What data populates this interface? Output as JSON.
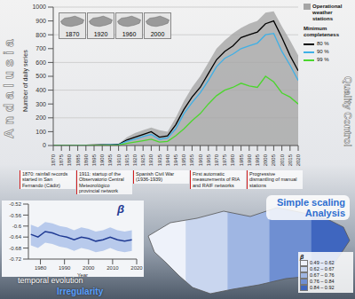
{
  "title_left": "Andalusia",
  "title_right": "Quality Control",
  "chart_data": [
    {
      "type": "line",
      "y_label": "Number of daily series",
      "legend_title": "Minimum completeness",
      "legend": "top right",
      "grid": true,
      "x": [
        1870,
        1875,
        1880,
        1885,
        1890,
        1895,
        1900,
        1905,
        1910,
        1915,
        1920,
        1925,
        1930,
        1935,
        1940,
        1945,
        1950,
        1955,
        1960,
        1965,
        1970,
        1975,
        1980,
        1985,
        1990,
        1995,
        2000,
        2005,
        2010,
        2015,
        2020
      ],
      "xlim": [
        1870,
        2020
      ],
      "xticks": [
        1870,
        1875,
        1880,
        1885,
        1890,
        1895,
        1900,
        1905,
        1910,
        1915,
        1920,
        1925,
        1930,
        1935,
        1940,
        1945,
        1950,
        1955,
        1960,
        1965,
        1970,
        1975,
        1980,
        1985,
        1990,
        1995,
        2000,
        2005,
        2010,
        2015,
        2020
      ],
      "ylim": [
        0,
        1000
      ],
      "yticks": [
        0,
        100,
        200,
        300,
        400,
        500,
        600,
        700,
        800,
        900,
        1000
      ],
      "series": [
        {
          "name": "Operational weather stations",
          "type": "area",
          "color": "#a6a6a6",
          "values": [
            1,
            2,
            3,
            3,
            4,
            5,
            6,
            7,
            10,
            60,
            90,
            110,
            130,
            110,
            100,
            200,
            320,
            420,
            500,
            600,
            700,
            760,
            810,
            850,
            880,
            900,
            960,
            970,
            860,
            760,
            650
          ]
        },
        {
          "name": "80 %",
          "type": "line",
          "color": "#000000",
          "values": [
            1,
            1,
            2,
            2,
            3,
            4,
            5,
            6,
            8,
            40,
            60,
            80,
            100,
            60,
            70,
            150,
            260,
            350,
            420,
            520,
            620,
            680,
            720,
            780,
            800,
            820,
            880,
            900,
            780,
            650,
            540
          ]
        },
        {
          "name": "90 %",
          "type": "line",
          "color": "#3fb0e6",
          "values": [
            1,
            1,
            1,
            2,
            2,
            3,
            4,
            5,
            6,
            30,
            45,
            65,
            80,
            45,
            55,
            120,
            230,
            310,
            380,
            470,
            570,
            630,
            660,
            700,
            720,
            740,
            800,
            810,
            680,
            580,
            470
          ]
        },
        {
          "name": "99 %",
          "type": "line",
          "color": "#4cd62e",
          "values": [
            0,
            0,
            1,
            1,
            1,
            2,
            2,
            3,
            4,
            15,
            25,
            35,
            45,
            25,
            30,
            70,
            120,
            180,
            230,
            300,
            360,
            400,
            420,
            450,
            430,
            420,
            500,
            460,
            380,
            350,
            300
          ]
        }
      ],
      "insets": [
        1870,
        1920,
        1960,
        2000
      ],
      "annotations": [
        "1870: rainfall records started in San Fernando (Cádiz)",
        "1911: startup of the Observatorio Central Meteorológico provincial network",
        "Spanish Civil War (1936-1939)",
        "First automatic measurements of RIA and RAIF networks",
        "Progressive dismantling of manual stations"
      ]
    },
    {
      "type": "line",
      "title": "β",
      "x_label": "Year",
      "grid": false,
      "x": [
        1976,
        1979,
        1982,
        1985,
        1988,
        1991,
        1994,
        1997,
        2000,
        2003,
        2006,
        2009,
        2012,
        2015,
        2018
      ],
      "xlim": [
        1975,
        2020
      ],
      "xticks": [
        1980,
        1990,
        2000,
        2010,
        2020
      ],
      "ylim": [
        -0.72,
        -0.52
      ],
      "yticks": [
        -0.72,
        -0.68,
        -0.64,
        -0.6,
        -0.56,
        -0.52
      ],
      "series": [
        {
          "name": "β",
          "color": "#1f3a93",
          "values": [
            -0.63,
            -0.64,
            -0.62,
            -0.625,
            -0.635,
            -0.64,
            -0.65,
            -0.64,
            -0.645,
            -0.655,
            -0.65,
            -0.64,
            -0.65,
            -0.655,
            -0.65
          ]
        }
      ],
      "band": {
        "color": "#a9bfe8",
        "lower": [
          -0.67,
          -0.68,
          -0.66,
          -0.665,
          -0.675,
          -0.68,
          -0.69,
          -0.68,
          -0.685,
          -0.695,
          -0.69,
          -0.68,
          -0.69,
          -0.695,
          -0.69
        ],
        "upper": [
          -0.595,
          -0.605,
          -0.585,
          -0.59,
          -0.6,
          -0.605,
          -0.615,
          -0.605,
          -0.61,
          -0.62,
          -0.615,
          -0.605,
          -0.615,
          -0.62,
          -0.615
        ]
      }
    }
  ],
  "map": {
    "type": "map",
    "title": "β",
    "legend": [
      {
        "label": "0.49 – 0.62",
        "color": "#eef2fa"
      },
      {
        "label": "0.62 – 0.67",
        "color": "#c9d6ef"
      },
      {
        "label": "0.67 – 0.76",
        "color": "#9fb6e3"
      },
      {
        "label": "0.76 – 0.84",
        "color": "#6f8fd2"
      },
      {
        "label": "0.84 – 0.92",
        "color": "#3f66bf"
      }
    ]
  },
  "labels": {
    "scaling": "Simple scaling Analysis",
    "evolution": "temporal evolution",
    "irregularity": "Irregularity"
  }
}
